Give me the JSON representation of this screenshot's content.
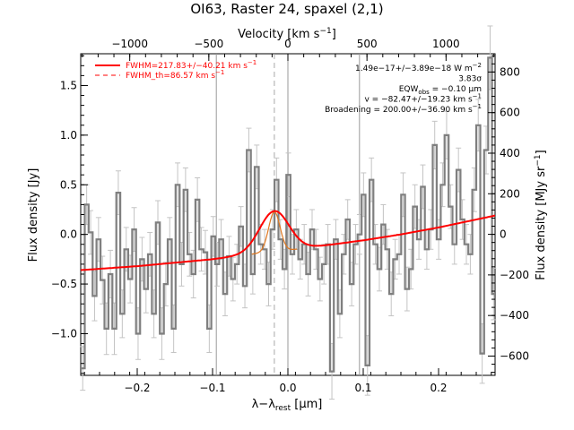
{
  "chart_data": {
    "type": "line",
    "title": "OI63, Raster 24, spaxel (2,1)",
    "xlabel": "λ−λ",
    "xlabel_sub": "rest",
    "xlabel_unit": " [μm]",
    "ylabel": "Flux density [Jy]",
    "top_axis_label": "Velocity [km s",
    "top_axis_label_sup": "−1",
    "top_axis_label_end": "]",
    "right_axis_label": "Flux density [MJy sr",
    "right_axis_label_sup": "−1",
    "right_axis_label_end": "]",
    "xlim": [
      -0.275,
      0.275
    ],
    "ylim": [
      -1.42,
      1.82
    ],
    "top_xlim": [
      -1310,
      1310
    ],
    "right_ylim": [
      -695,
      890
    ],
    "x_ticks": [
      -0.2,
      -0.1,
      0.0,
      0.1,
      0.2
    ],
    "x_tick_labels": [
      "−0.2",
      "−0.1",
      "0.0",
      "0.1",
      "0.2"
    ],
    "y_ticks": [
      -1.0,
      -0.5,
      0.0,
      0.5,
      1.0,
      1.5
    ],
    "y_tick_labels": [
      "−1.0",
      "−0.5",
      "0.0",
      "0.5",
      "1.0",
      "1.5"
    ],
    "top_ticks": [
      -1000,
      -500,
      0,
      500,
      1000
    ],
    "top_tick_labels": [
      "−1000",
      "−500",
      "0",
      "500",
      "1000"
    ],
    "right_ticks": [
      -600,
      -400,
      -200,
      0,
      200,
      400,
      600,
      800
    ],
    "right_tick_labels": [
      "−600",
      "−400",
      "−200",
      "0",
      "200",
      "400",
      "600",
      "800"
    ],
    "vertical_lines_x": [
      -0.095,
      0.0,
      0.095
    ],
    "dashed_line_x": -0.018,
    "legend": [
      {
        "text": "FWHM=217.83+/−40.21 km s",
        "sup": "−1",
        "style": "solid",
        "color": "#ff0000"
      },
      {
        "text": "FWHM_th=86.57 km s",
        "sup": "−1",
        "style": "dashed",
        "color": "#ff0000"
      }
    ],
    "annotations": [
      {
        "text": "1.49e−17+/−3.89e−18 W m",
        "sup": "−2"
      },
      {
        "text": "3.83σ"
      },
      {
        "text": "EQW",
        "sub": "obs",
        "after": " = −0.10 μm"
      },
      {
        "text": "v = −82.47+/−19.23 km s",
        "sup": "−1"
      },
      {
        "text": "Broadening = 200.00+/−36.90 km s",
        "sup": "−1"
      }
    ],
    "series": [
      {
        "style": "step",
        "color": "#808080",
        "x": [
          -0.275,
          -0.2697,
          -0.2645,
          -0.2592,
          -0.254,
          -0.2487,
          -0.2435,
          -0.2382,
          -0.233,
          -0.2277,
          -0.2225,
          -0.2172,
          -0.212,
          -0.2067,
          -0.2015,
          -0.1962,
          -0.191,
          -0.1857,
          -0.1805,
          -0.1752,
          -0.17,
          -0.1647,
          -0.1595,
          -0.1542,
          -0.149,
          -0.1437,
          -0.1385,
          -0.1332,
          -0.128,
          -0.1227,
          -0.1175,
          -0.1122,
          -0.107,
          -0.1017,
          -0.0965,
          -0.0912,
          -0.086,
          -0.0807,
          -0.0755,
          -0.0702,
          -0.065,
          -0.0597,
          -0.0545,
          -0.0492,
          -0.044,
          -0.0387,
          -0.0335,
          -0.0282,
          -0.023,
          -0.0177,
          -0.0125,
          -0.0072,
          -0.002,
          0.0033,
          0.0085,
          0.0138,
          0.019,
          0.0243,
          0.0295,
          0.0348,
          0.04,
          0.0453,
          0.0505,
          0.0558,
          0.061,
          0.0663,
          0.0715,
          0.0768,
          0.082,
          0.0873,
          0.0925,
          0.0978,
          0.103,
          0.1083,
          0.1135,
          0.1188,
          0.124,
          0.1293,
          0.1345,
          0.1398,
          0.145,
          0.1503,
          0.1555,
          0.1608,
          0.166,
          0.1713,
          0.1765,
          0.1818,
          0.187,
          0.1923,
          0.1975,
          0.2028,
          0.208,
          0.2133,
          0.2185,
          0.2238,
          0.229,
          0.2343,
          0.2395,
          0.2448,
          0.25,
          0.2553,
          0.2605,
          0.2658,
          0.271,
          0.275
        ],
        "y": [
          -1.35,
          0.3,
          0.02,
          -0.62,
          -0.05,
          -0.46,
          -0.95,
          -0.4,
          -0.95,
          0.42,
          -0.8,
          -0.15,
          -0.45,
          0.05,
          -1.0,
          -0.25,
          -0.55,
          -0.2,
          -0.8,
          0.12,
          -1.0,
          -0.5,
          -0.05,
          -0.95,
          0.5,
          -0.3,
          0.45,
          -0.2,
          -0.4,
          0.35,
          -0.15,
          -0.18,
          -0.95,
          -0.02,
          -0.3,
          -0.05,
          -0.6,
          -0.22,
          -0.45,
          -0.3,
          0.08,
          -0.52,
          0.85,
          -0.4,
          0.68,
          -0.1,
          -0.15,
          -0.5,
          0.05,
          0.55,
          -0.05,
          -0.35,
          0.6,
          -0.2,
          0.05,
          -0.25,
          -0.1,
          -0.4,
          0.05,
          -0.15,
          -0.45,
          -0.3,
          -0.1,
          -1.38,
          -0.05,
          -0.8,
          -0.2,
          0.15,
          -0.5,
          -0.1,
          0.0,
          0.4,
          -1.32,
          0.55,
          -0.1,
          -0.35,
          0.1,
          -0.15,
          -0.6,
          -0.25,
          -0.2,
          0.4,
          -0.55,
          -0.35,
          0.28,
          -0.05,
          0.48,
          -0.15,
          0.05,
          0.9,
          -0.05,
          0.5,
          1.0,
          0.28,
          -0.1,
          0.65,
          0.15,
          -0.1,
          -0.2,
          0.45,
          1.1,
          -1.2,
          0.85,
          1.78,
          -0.6,
          0.8
        ],
        "y_err": [
          0.22,
          0.2,
          0.22,
          0.25,
          0.22,
          0.24,
          0.26,
          0.24,
          0.26,
          0.22,
          0.24,
          0.22,
          0.24,
          0.22,
          0.26,
          0.22,
          0.24,
          0.22,
          0.24,
          0.22,
          0.26,
          0.22,
          0.22,
          0.24,
          0.22,
          0.22,
          0.22,
          0.22,
          0.24,
          0.22,
          0.22,
          0.22,
          0.24,
          0.2,
          0.22,
          0.2,
          0.22,
          0.2,
          0.22,
          0.2,
          0.2,
          0.22,
          0.22,
          0.2,
          0.22,
          0.2,
          0.2,
          0.22,
          0.2,
          0.22,
          0.2,
          0.2,
          0.22,
          0.2,
          0.2,
          0.2,
          0.2,
          0.22,
          0.2,
          0.2,
          0.22,
          0.2,
          0.2,
          0.28,
          0.2,
          0.24,
          0.2,
          0.2,
          0.22,
          0.2,
          0.2,
          0.22,
          0.3,
          0.22,
          0.2,
          0.22,
          0.2,
          0.2,
          0.22,
          0.2,
          0.2,
          0.22,
          0.22,
          0.2,
          0.22,
          0.2,
          0.22,
          0.2,
          0.2,
          0.24,
          0.2,
          0.22,
          0.24,
          0.22,
          0.2,
          0.22,
          0.2,
          0.2,
          0.2,
          0.22,
          0.26,
          0.3,
          0.24,
          0.32,
          0.26,
          0.24
        ]
      },
      {
        "style": "line",
        "color": "#ff0000",
        "model": "baseline_plus_gaussian",
        "baseline_x": [
          -0.275,
          -0.2,
          -0.1,
          -0.05,
          0.0,
          0.05,
          0.1,
          0.15,
          0.2,
          0.275
        ],
        "baseline_y": [
          -0.36,
          -0.32,
          -0.25,
          -0.2,
          -0.16,
          -0.11,
          -0.06,
          0.0,
          0.07,
          0.19
        ],
        "center": -0.018,
        "amplitude": 0.41,
        "fwhm": 0.046
      },
      {
        "style": "line",
        "color": "#e07820",
        "model": "baseline_plus_gaussian",
        "center": -0.018,
        "amplitude": 0.4,
        "fwhm": 0.018
      }
    ]
  }
}
